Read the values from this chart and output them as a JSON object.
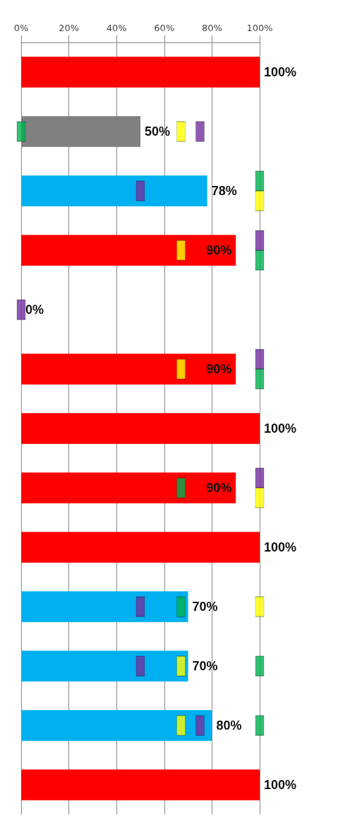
{
  "chart_data": {
    "type": "bar",
    "orientation": "horizontal",
    "categories": [
      null,
      null,
      null,
      null,
      null,
      null,
      null,
      null,
      null,
      null,
      null,
      null,
      null
    ],
    "xlim": [
      0,
      100
    ],
    "xticks": [
      {
        "value": 0,
        "label": "0%"
      },
      {
        "value": 20,
        "label": "20%"
      },
      {
        "value": 40,
        "label": "40%"
      },
      {
        "value": 60,
        "label": "60%"
      },
      {
        "value": 80,
        "label": "80%"
      },
      {
        "value": 100,
        "label": "100%"
      }
    ],
    "grid": "x",
    "series": [
      {
        "values": [
          100,
          50,
          78,
          90,
          0,
          90,
          100,
          90,
          100,
          70,
          70,
          80,
          100
        ],
        "colors": [
          "#ff0000",
          "#808080",
          "#00b0f0",
          "#ff0000",
          "#ff0000",
          "#ff0000",
          "#ff0000",
          "#ff0000",
          "#ff0000",
          "#00b0f0",
          "#00b0f0",
          "#00b0f0",
          "#ff0000"
        ],
        "value_labels": [
          "100%",
          "50%",
          "78%",
          "90%",
          "0%",
          "90%",
          "100%",
          "90%",
          "100%",
          "70%",
          "70%",
          "80%",
          "100%"
        ]
      },
      {
        "type": "scatter",
        "marker": "square",
        "color": "#7030a0",
        "values": [
          null,
          75,
          50,
          100,
          0,
          100,
          null,
          100,
          null,
          50,
          50,
          75,
          null
        ]
      },
      {
        "type": "scatter",
        "marker": "square",
        "color": "#00b050",
        "values": [
          null,
          0,
          100,
          100,
          null,
          100,
          null,
          67,
          null,
          67,
          100,
          100,
          null
        ]
      },
      {
        "type": "scatter",
        "marker": "square",
        "color": "#ffff00",
        "values": [
          null,
          67,
          100,
          67,
          null,
          67,
          null,
          100,
          null,
          100,
          67,
          67,
          null
        ]
      }
    ]
  }
}
